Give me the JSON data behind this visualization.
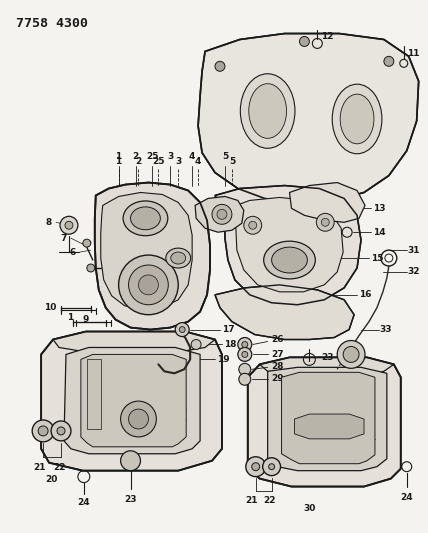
{
  "title": "7758 4300",
  "bg_color": "#f5f3ef",
  "line_color": "#1a1a1a",
  "fig_width": 4.28,
  "fig_height": 5.33,
  "dpi": 100
}
